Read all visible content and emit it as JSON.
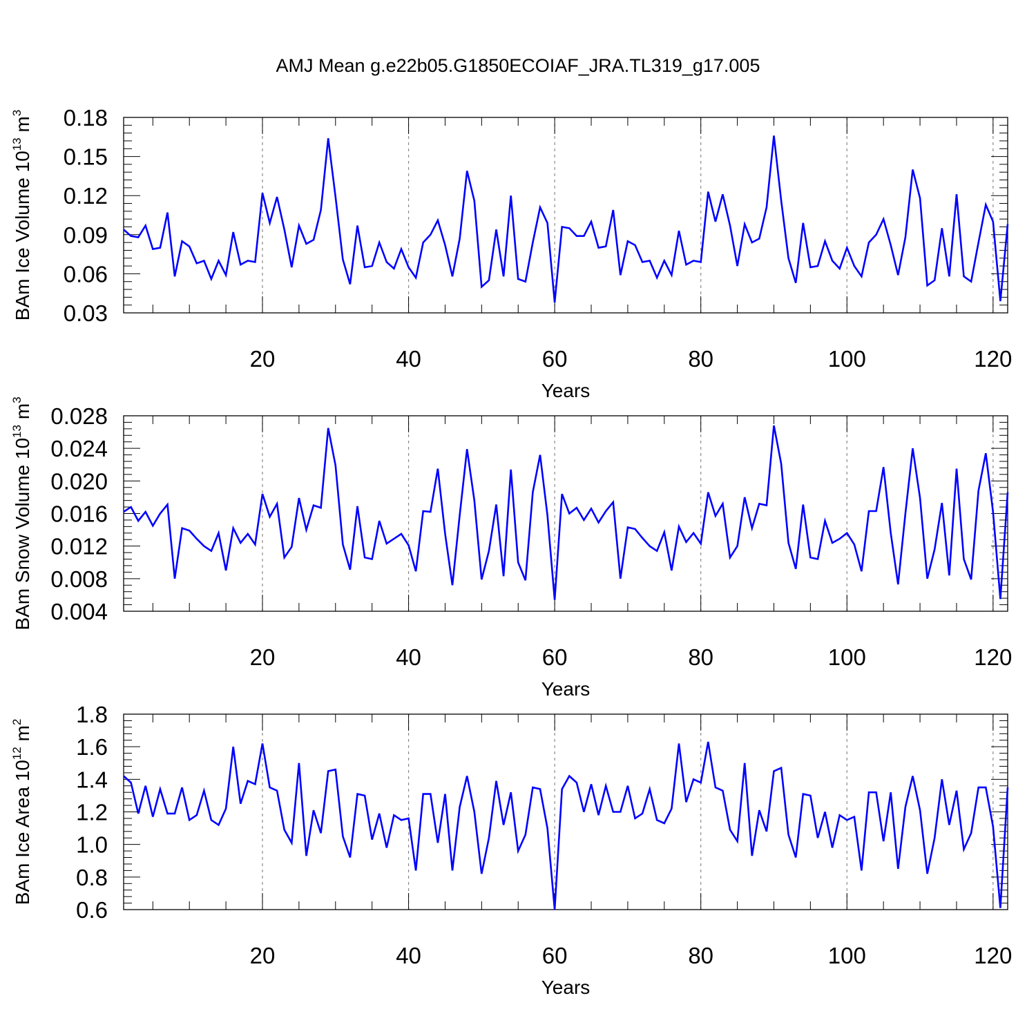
{
  "title": "AMJ Mean g.e22b05.G1850ECOIAF_JRA.TL319_g17.005",
  "line_color": "#0000ff",
  "chart_data": [
    {
      "type": "line",
      "xlabel": "Years",
      "ylabel_parts": [
        "BAm Ice Volume 10",
        "13",
        " m",
        "3"
      ],
      "xlim": [
        1,
        122
      ],
      "ylim": [
        0.03,
        0.18
      ],
      "xticks": [
        20,
        40,
        60,
        80,
        100,
        120
      ],
      "xtick_labels": [
        "20",
        "40",
        "60",
        "80",
        "100",
        "120"
      ],
      "yticks": [
        0.03,
        0.06,
        0.09,
        0.12,
        0.15,
        0.18
      ],
      "ytick_labels": [
        "0.03",
        "0.06",
        "0.09",
        "0.12",
        "0.15",
        "0.18"
      ],
      "grid": "dashed vertical at x ticks",
      "x_start": 1,
      "values": [
        0.094,
        0.089,
        0.088,
        0.097,
        0.079,
        0.08,
        0.107,
        0.058,
        0.085,
        0.081,
        0.068,
        0.07,
        0.056,
        0.07,
        0.059,
        0.092,
        0.067,
        0.07,
        0.069,
        0.122,
        0.099,
        0.119,
        0.094,
        0.065,
        0.097,
        0.083,
        0.086,
        0.109,
        0.164,
        0.119,
        0.071,
        0.052,
        0.097,
        0.065,
        0.066,
        0.084,
        0.069,
        0.064,
        0.079,
        0.065,
        0.057,
        0.084,
        0.09,
        0.101,
        0.082,
        0.058,
        0.087,
        0.139,
        0.116,
        0.05,
        0.055,
        0.094,
        0.058,
        0.12,
        0.056,
        0.054,
        0.084,
        0.111,
        0.099,
        0.038,
        0.096,
        0.095,
        0.089,
        0.089,
        0.1,
        0.08,
        0.081,
        0.109,
        0.059,
        0.085,
        0.082,
        0.069,
        0.07,
        0.057,
        0.07,
        0.059,
        0.093,
        0.067,
        0.07,
        0.069,
        0.123,
        0.1,
        0.121,
        0.097,
        0.066,
        0.098,
        0.084,
        0.087,
        0.111,
        0.166,
        0.116,
        0.072,
        0.053,
        0.099,
        0.065,
        0.066,
        0.085,
        0.07,
        0.064,
        0.08,
        0.066,
        0.058,
        0.084,
        0.09,
        0.102,
        0.082,
        0.059,
        0.088,
        0.14,
        0.118,
        0.051,
        0.055,
        0.095,
        0.058,
        0.121,
        0.058,
        0.054,
        0.084,
        0.113,
        0.1,
        0.039,
        0.098
      ]
    },
    {
      "type": "line",
      "xlabel": "Years",
      "ylabel_parts": [
        "BAm Snow Volume 10",
        "13",
        " m",
        "3"
      ],
      "xlim": [
        1,
        122
      ],
      "ylim": [
        0.004,
        0.028
      ],
      "xticks": [
        20,
        40,
        60,
        80,
        100,
        120
      ],
      "xtick_labels": [
        "20",
        "40",
        "60",
        "80",
        "100",
        "120"
      ],
      "yticks": [
        0.004,
        0.008,
        0.012,
        0.016,
        0.02,
        0.024,
        0.028
      ],
      "ytick_labels": [
        "0.004",
        "0.008",
        "0.012",
        "0.016",
        "0.020",
        "0.024",
        "0.028"
      ],
      "grid": "dashed vertical at x ticks",
      "x_start": 1,
      "values": [
        0.0162,
        0.0168,
        0.0151,
        0.0162,
        0.0145,
        0.016,
        0.0171,
        0.008,
        0.0142,
        0.0139,
        0.0129,
        0.012,
        0.0114,
        0.0136,
        0.009,
        0.0142,
        0.0124,
        0.0135,
        0.0122,
        0.0184,
        0.0156,
        0.0172,
        0.0106,
        0.0119,
        0.0179,
        0.014,
        0.017,
        0.0167,
        0.0265,
        0.0219,
        0.0122,
        0.0091,
        0.0169,
        0.0106,
        0.0104,
        0.0151,
        0.0123,
        0.0129,
        0.0135,
        0.0121,
        0.0089,
        0.0163,
        0.0162,
        0.0215,
        0.0135,
        0.0072,
        0.0158,
        0.0239,
        0.0176,
        0.0079,
        0.0114,
        0.0171,
        0.0083,
        0.0214,
        0.01,
        0.0078,
        0.0186,
        0.0232,
        0.0158,
        0.0054,
        0.0184,
        0.016,
        0.0167,
        0.0152,
        0.0166,
        0.0149,
        0.0163,
        0.0174,
        0.008,
        0.0143,
        0.0141,
        0.013,
        0.012,
        0.0114,
        0.0137,
        0.009,
        0.0144,
        0.0125,
        0.0136,
        0.0123,
        0.0186,
        0.0157,
        0.0172,
        0.0106,
        0.012,
        0.018,
        0.0142,
        0.0172,
        0.017,
        0.0268,
        0.0221,
        0.0124,
        0.0092,
        0.0171,
        0.0106,
        0.0104,
        0.0151,
        0.0124,
        0.0129,
        0.0136,
        0.0122,
        0.0089,
        0.0163,
        0.0163,
        0.0217,
        0.0136,
        0.0073,
        0.016,
        0.024,
        0.0179,
        0.008,
        0.0116,
        0.0173,
        0.0084,
        0.0215,
        0.0104,
        0.0079,
        0.0188,
        0.0234,
        0.0162,
        0.0055,
        0.0186
      ]
    },
    {
      "type": "line",
      "xlabel": "Years",
      "ylabel_parts": [
        "BAm Ice Area 10",
        "12",
        " m",
        "2"
      ],
      "xlim": [
        1,
        122
      ],
      "ylim": [
        0.6,
        1.8
      ],
      "xticks": [
        20,
        40,
        60,
        80,
        100,
        120
      ],
      "xtick_labels": [
        "20",
        "40",
        "60",
        "80",
        "100",
        "120"
      ],
      "yticks": [
        0.6,
        0.8,
        1.0,
        1.2,
        1.4,
        1.6,
        1.8
      ],
      "ytick_labels": [
        "0.6",
        "0.8",
        "1.0",
        "1.2",
        "1.4",
        "1.6",
        "1.8"
      ],
      "grid": "dashed vertical at x ticks",
      "x_start": 1,
      "values": [
        1.42,
        1.38,
        1.19,
        1.36,
        1.17,
        1.34,
        1.19,
        1.19,
        1.35,
        1.15,
        1.18,
        1.33,
        1.15,
        1.12,
        1.22,
        1.6,
        1.25,
        1.39,
        1.37,
        1.62,
        1.35,
        1.33,
        1.09,
        1.01,
        1.5,
        0.93,
        1.21,
        1.07,
        1.45,
        1.46,
        1.05,
        0.92,
        1.31,
        1.3,
        1.03,
        1.19,
        0.98,
        1.18,
        1.15,
        1.16,
        0.84,
        1.31,
        1.31,
        1.01,
        1.31,
        0.84,
        1.23,
        1.42,
        1.2,
        0.82,
        1.04,
        1.39,
        1.12,
        1.32,
        0.96,
        1.06,
        1.35,
        1.34,
        1.1,
        0.6,
        1.34,
        1.42,
        1.38,
        1.2,
        1.37,
        1.18,
        1.36,
        1.2,
        1.2,
        1.36,
        1.16,
        1.19,
        1.34,
        1.15,
        1.13,
        1.22,
        1.62,
        1.26,
        1.4,
        1.38,
        1.63,
        1.35,
        1.33,
        1.09,
        1.02,
        1.5,
        0.93,
        1.21,
        1.08,
        1.45,
        1.47,
        1.06,
        0.92,
        1.31,
        1.3,
        1.04,
        1.2,
        0.98,
        1.18,
        1.15,
        1.17,
        0.84,
        1.32,
        1.32,
        1.02,
        1.32,
        0.85,
        1.23,
        1.42,
        1.21,
        0.82,
        1.04,
        1.4,
        1.12,
        1.33,
        0.97,
        1.07,
        1.35,
        1.35,
        1.11,
        0.61,
        1.35
      ]
    }
  ]
}
